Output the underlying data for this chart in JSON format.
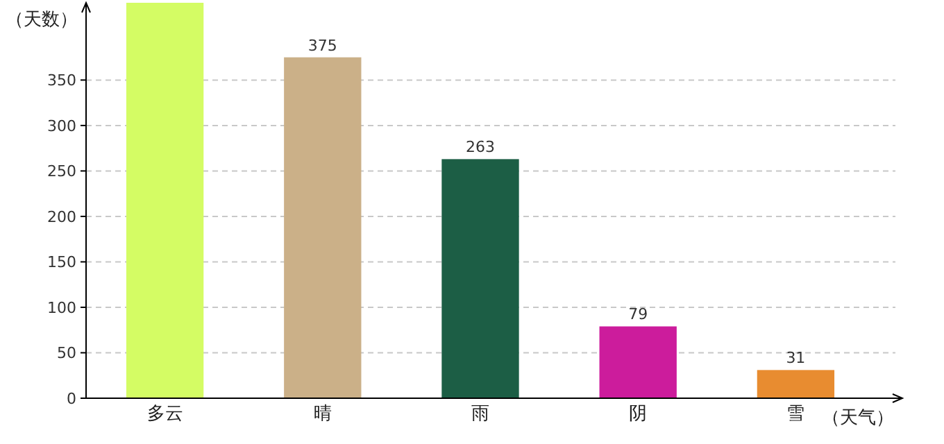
{
  "chart_data": {
    "type": "bar",
    "xlabel": "（天气）",
    "ylabel": "（天数）",
    "categories": [
      "多云",
      "晴",
      "雨",
      "阴",
      "雪"
    ],
    "values": [
      435,
      375,
      263,
      79,
      31
    ],
    "colors": [
      "#d4fc64",
      "#cbb088",
      "#1c5e45",
      "#cc1c9c",
      "#e88c30"
    ],
    "value_labels": [
      null,
      "375",
      "263",
      "79",
      "31"
    ],
    "ylim": [
      0,
      435
    ],
    "yticks": [
      0,
      50,
      100,
      150,
      200,
      250,
      300,
      350
    ],
    "grid": "y"
  }
}
